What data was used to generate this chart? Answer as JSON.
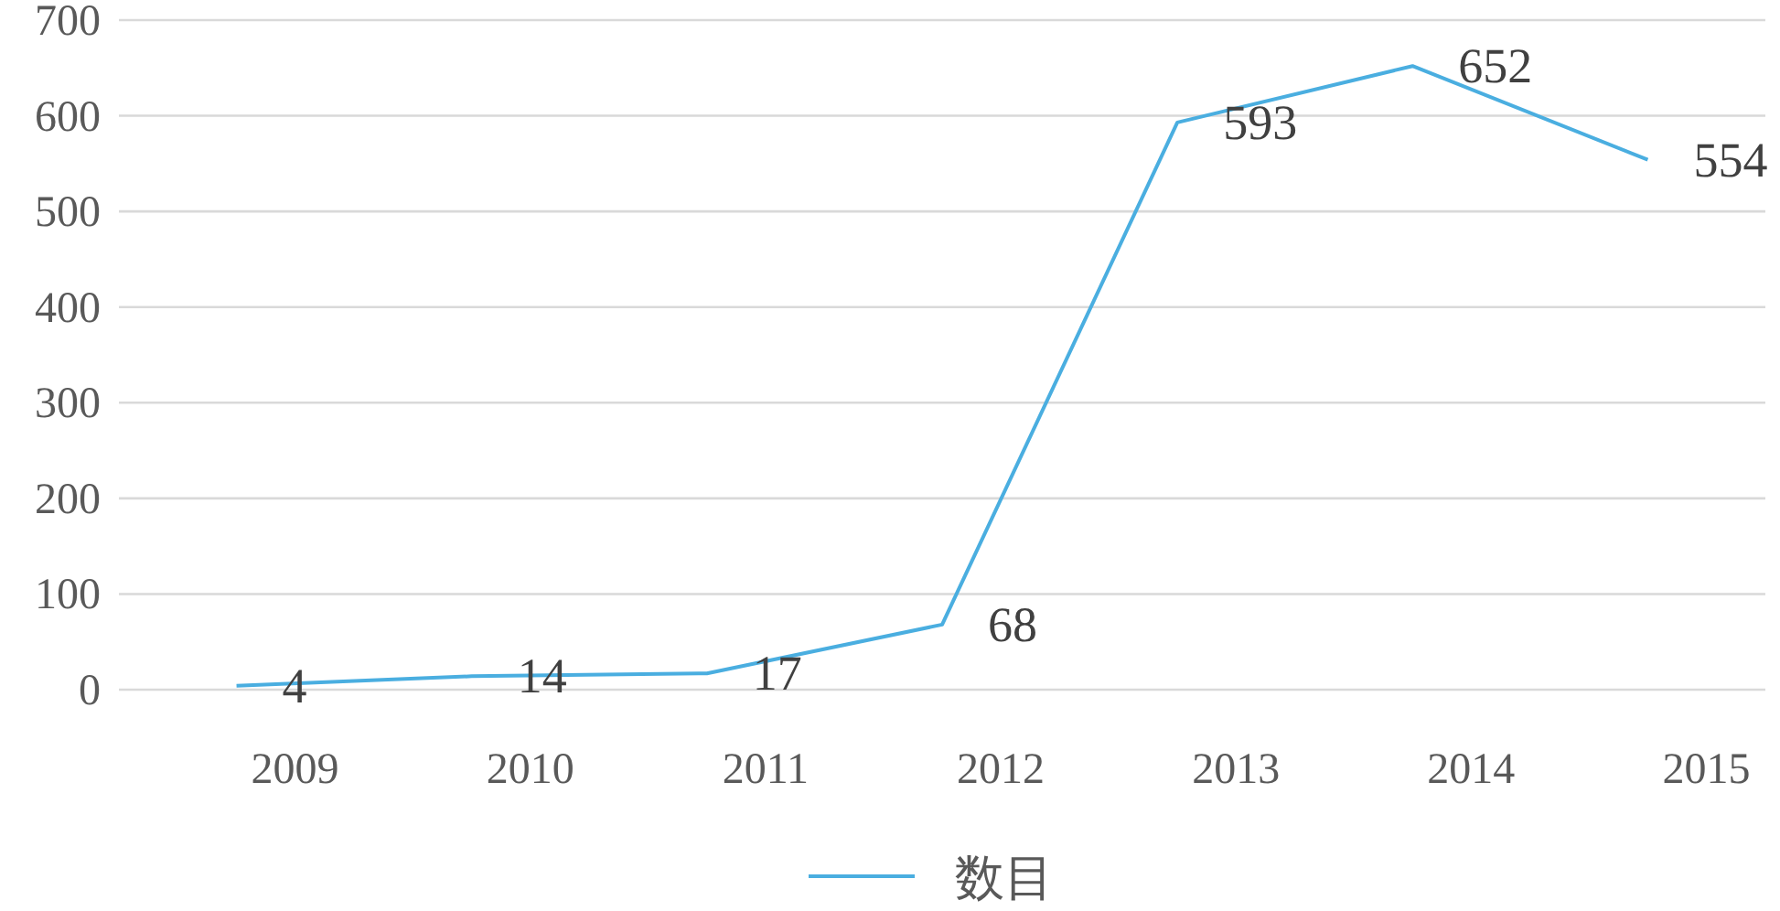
{
  "chart_data": {
    "type": "line",
    "categories": [
      "2009",
      "2010",
      "2011",
      "2012",
      "2013",
      "2014",
      "2015"
    ],
    "series": [
      {
        "name": "数目",
        "color": "#4aaee0",
        "values": [
          4,
          14,
          17,
          68,
          593,
          652,
          554
        ]
      }
    ],
    "ylim": [
      0,
      700
    ],
    "yticks": [
      0,
      100,
      200,
      300,
      400,
      500,
      600,
      700
    ],
    "grid": "y",
    "legend": "bottom",
    "data_labels": true,
    "marker": "none",
    "line_style": "solid"
  }
}
